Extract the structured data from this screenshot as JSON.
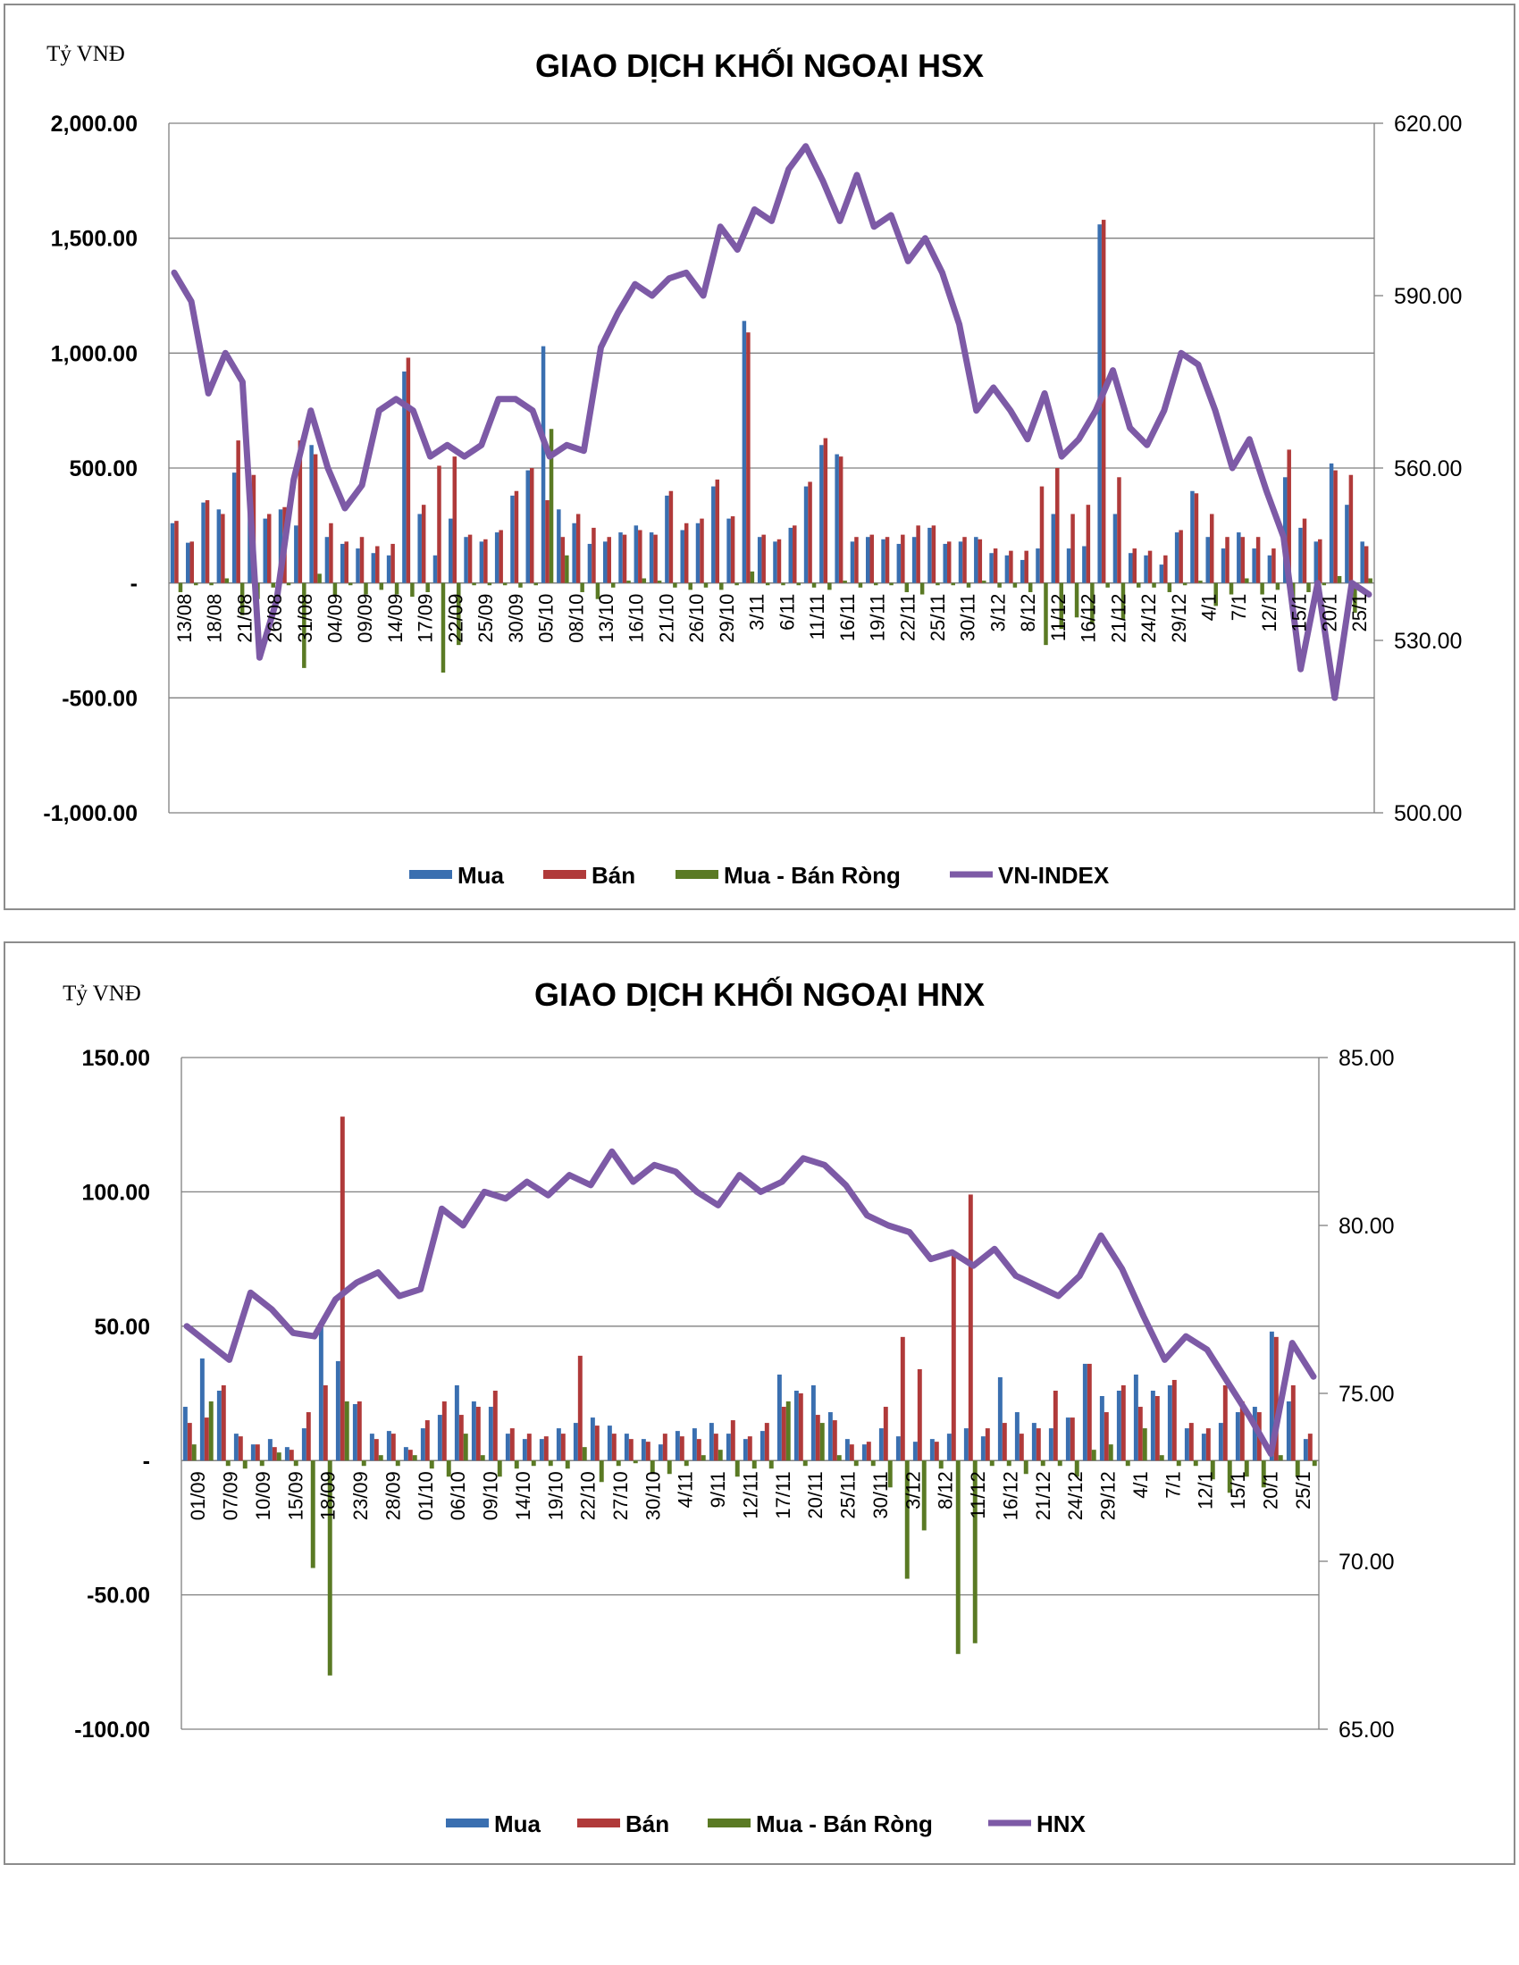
{
  "colors": {
    "mua": "#3a6fb0",
    "ban": "#b03a3a",
    "net": "#5a7a24",
    "index": "#7d5aa6",
    "grid": "#808080"
  },
  "chart_data": [
    {
      "type": "bar",
      "title": "GIAO DỊCH KHỐI NGOẠI HSX",
      "unit_label": "Tỷ VNĐ",
      "ylim": [
        -1000,
        2000
      ],
      "y_ticks": [
        "2,000.00",
        "1,500.00",
        "1,000.00",
        "500.00",
        "-",
        "-500.00",
        "-1,000.00"
      ],
      "y2lim": [
        500,
        620
      ],
      "y2_ticks": [
        "620.00",
        "590.00",
        "560.00",
        "530.00",
        "500.00"
      ],
      "x_labels": [
        "13/08",
        "18/08",
        "21/08",
        "26/08",
        "31/08",
        "04/09",
        "09/09",
        "14/09",
        "17/09",
        "22/09",
        "25/09",
        "30/09",
        "05/10",
        "08/10",
        "13/10",
        "16/10",
        "21/10",
        "26/10",
        "29/10",
        "3/11",
        "6/11",
        "11/11",
        "16/11",
        "19/11",
        "22/11",
        "25/11",
        "30/11",
        "3/12",
        "8/12",
        "11/12",
        "16/12",
        "21/12",
        "24/12",
        "29/12",
        "4/1",
        "7/1",
        "12/1",
        "15/1",
        "20/1",
        "25/1"
      ],
      "legend": [
        "Mua",
        "Bán",
        "Mua - Bán Ròng",
        "VN-INDEX"
      ],
      "series": [
        {
          "name": "Mua",
          "values": [
            260,
            175,
            350,
            320,
            480,
            400,
            280,
            320,
            250,
            600,
            200,
            170,
            150,
            130,
            120,
            920,
            300,
            120,
            280,
            200,
            180,
            220,
            380,
            490,
            1030,
            320,
            260,
            170,
            180,
            220,
            250,
            220,
            380,
            230,
            260,
            420,
            280,
            1140,
            200,
            180,
            240,
            420,
            600,
            560,
            180,
            200,
            190,
            170,
            200,
            240,
            170,
            180,
            200,
            130,
            120,
            100,
            150,
            300,
            150,
            160,
            1560,
            300,
            130,
            120,
            80,
            220,
            400,
            200,
            150,
            220,
            150,
            120,
            460,
            240,
            180,
            520,
            340,
            180
          ]
        },
        {
          "name": "Bán",
          "values": [
            270,
            180,
            360,
            300,
            620,
            470,
            300,
            330,
            620,
            560,
            260,
            180,
            200,
            160,
            170,
            980,
            340,
            510,
            550,
            210,
            190,
            230,
            400,
            500,
            360,
            200,
            300,
            240,
            200,
            210,
            230,
            210,
            400,
            260,
            280,
            450,
            290,
            1090,
            210,
            190,
            250,
            440,
            630,
            550,
            200,
            210,
            200,
            210,
            250,
            250,
            180,
            200,
            190,
            150,
            140,
            140,
            420,
            500,
            300,
            340,
            1580,
            460,
            150,
            140,
            120,
            230,
            390,
            300,
            200,
            200,
            200,
            150,
            580,
            280,
            190,
            490,
            470,
            160
          ]
        },
        {
          "name": "Mua - Bán Ròng",
          "values": [
            -40,
            -10,
            -10,
            20,
            -140,
            -70,
            -20,
            -10,
            -370,
            40,
            -60,
            -10,
            -50,
            -30,
            -50,
            -60,
            -40,
            -390,
            -270,
            -10,
            -10,
            -10,
            -20,
            -10,
            670,
            120,
            -40,
            -70,
            -20,
            10,
            20,
            10,
            -20,
            -30,
            -20,
            -30,
            -10,
            50,
            -10,
            -10,
            -10,
            -20,
            -30,
            10,
            -20,
            -10,
            -10,
            -40,
            -50,
            -10,
            -10,
            -20,
            10,
            -20,
            -20,
            -40,
            -270,
            -200,
            -150,
            -180,
            -20,
            -160,
            -20,
            -20,
            -40,
            -10,
            10,
            -100,
            -50,
            20,
            -50,
            -30,
            -120,
            -40,
            -10,
            30,
            -130,
            20
          ]
        },
        {
          "name": "VN-INDEX",
          "values": [
            594,
            589,
            573,
            580,
            575,
            527,
            537,
            558,
            570,
            560,
            553,
            557,
            570,
            572,
            570,
            562,
            564,
            562,
            564,
            572,
            572,
            570,
            562,
            564,
            563,
            581,
            587,
            592,
            590,
            593,
            594,
            590,
            602,
            598,
            605,
            603,
            612,
            616,
            610,
            603,
            611,
            602,
            604,
            596,
            600,
            594,
            585,
            570,
            574,
            570,
            565,
            573,
            562,
            565,
            570,
            577,
            567,
            564,
            570,
            580,
            578,
            570,
            560,
            565,
            556,
            548,
            525,
            540,
            520,
            540,
            538
          ]
        }
      ]
    },
    {
      "type": "bar",
      "title": "GIAO DỊCH KHỐI NGOẠI HNX",
      "unit_label": "Tỷ VNĐ",
      "ylim": [
        -100,
        150
      ],
      "y_ticks": [
        "150.00",
        "100.00",
        "50.00",
        "-",
        "-50.00",
        "-100.00"
      ],
      "y2lim": [
        65,
        85
      ],
      "y2_ticks": [
        "85.00",
        "80.00",
        "75.00",
        "70.00",
        "65.00"
      ],
      "x_labels": [
        "01/09",
        "07/09",
        "10/09",
        "15/09",
        "18/09",
        "23/09",
        "28/09",
        "01/10",
        "06/10",
        "09/10",
        "14/10",
        "19/10",
        "22/10",
        "27/10",
        "30/10",
        "4/11",
        "9/11",
        "12/11",
        "17/11",
        "20/11",
        "25/11",
        "30/11",
        "3/12",
        "8/12",
        "11/12",
        "16/12",
        "21/12",
        "24/12",
        "29/12",
        "4/1",
        "7/1",
        "12/1",
        "15/1",
        "20/1",
        "25/1"
      ],
      "legend": [
        "Mua",
        "Bán",
        "Mua - Bán Ròng",
        "HNX"
      ],
      "series": [
        {
          "name": "Mua",
          "values": [
            20,
            38,
            26,
            10,
            6,
            8,
            5,
            12,
            50,
            37,
            21,
            10,
            11,
            5,
            12,
            17,
            28,
            22,
            20,
            10,
            8,
            8,
            12,
            14,
            16,
            13,
            10,
            8,
            6,
            11,
            12,
            14,
            10,
            8,
            11,
            32,
            26,
            28,
            18,
            8,
            6,
            12,
            9,
            7,
            8,
            10,
            12,
            9,
            31,
            18,
            14,
            12,
            16,
            36,
            24,
            26,
            32,
            26,
            28,
            12,
            10,
            14,
            18,
            20,
            48,
            22,
            8
          ]
        },
        {
          "name": "Bán",
          "values": [
            14,
            16,
            28,
            9,
            6,
            5,
            4,
            18,
            28,
            128,
            22,
            8,
            10,
            4,
            15,
            22,
            17,
            20,
            26,
            12,
            10,
            9,
            10,
            39,
            13,
            10,
            8,
            7,
            10,
            9,
            8,
            10,
            15,
            9,
            14,
            20,
            25,
            17,
            15,
            6,
            7,
            20,
            46,
            34,
            7,
            77,
            99,
            12,
            14,
            10,
            12,
            26,
            16,
            36,
            18,
            28,
            20,
            24,
            30,
            14,
            12,
            28,
            22,
            18,
            46,
            28,
            10
          ]
        },
        {
          "name": "Mua - Bán Ròng",
          "values": [
            6,
            22,
            -2,
            -3,
            -2,
            3,
            -2,
            -40,
            -80,
            22,
            -2,
            2,
            -2,
            2,
            -3,
            -6,
            10,
            2,
            -6,
            -3,
            -2,
            -2,
            -3,
            5,
            -8,
            -2,
            -1,
            -5,
            -5,
            -2,
            2,
            4,
            -6,
            -3,
            -3,
            22,
            -2,
            14,
            2,
            -2,
            -2,
            -10,
            -44,
            -26,
            -3,
            -72,
            -68,
            -2,
            -2,
            -5,
            -2,
            -2,
            -6,
            4,
            6,
            -2,
            12,
            2,
            -2,
            -2,
            -7,
            -12,
            -6,
            -10,
            2,
            -6,
            -2
          ]
        },
        {
          "name": "HNX",
          "values": [
            77.0,
            76.5,
            76.0,
            78.0,
            77.5,
            76.8,
            76.7,
            77.8,
            78.3,
            78.6,
            77.9,
            78.1,
            80.5,
            80.0,
            81.0,
            80.8,
            81.3,
            80.9,
            81.5,
            81.2,
            82.2,
            81.3,
            81.8,
            81.6,
            81.0,
            80.6,
            81.5,
            81.0,
            81.3,
            82.0,
            81.8,
            81.2,
            80.3,
            80.0,
            79.8,
            79.0,
            79.2,
            78.8,
            79.3,
            78.5,
            78.2,
            77.9,
            78.5,
            79.7,
            78.7,
            77.3,
            76.0,
            76.7,
            76.3,
            75.3,
            74.3,
            73.2,
            76.5,
            75.5
          ]
        }
      ]
    }
  ]
}
